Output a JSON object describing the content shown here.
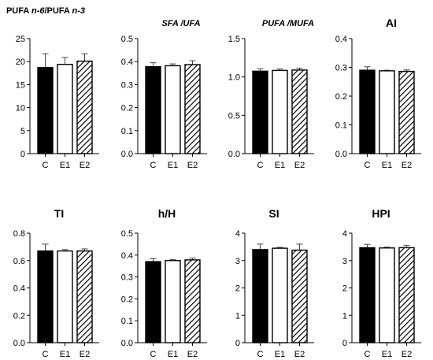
{
  "figure": {
    "categories": [
      "C",
      "E1",
      "E2"
    ],
    "colors": {
      "C": "#000000",
      "E1": "#ffffff",
      "E2": "hatch"
    }
  },
  "chart_data": [
    {
      "type": "bar",
      "title_parts": [
        {
          "text": "PUFA ",
          "italic": false
        },
        {
          "text": "n-6",
          "italic": true
        },
        {
          "text": "/PUFA ",
          "italic": false
        },
        {
          "text": "n-3",
          "italic": true
        }
      ],
      "title": "PUFA n-6/PUFA n-3",
      "categories": [
        "C",
        "E1",
        "E2"
      ],
      "values": [
        18.7,
        19.4,
        20.1
      ],
      "errors": [
        3.0,
        1.5,
        1.6
      ],
      "ylim": [
        0,
        25
      ],
      "ticks": [
        0,
        5,
        10,
        15,
        20,
        25
      ],
      "tick_labels": [
        "0",
        "5",
        "10",
        "15",
        "20",
        "25"
      ]
    },
    {
      "type": "bar",
      "title": "SFA /UFA",
      "title_style": "italic",
      "categories": [
        "C",
        "E1",
        "E2"
      ],
      "values": [
        0.378,
        0.382,
        0.387
      ],
      "errors": [
        0.017,
        0.008,
        0.017
      ],
      "ylim": [
        0,
        0.5
      ],
      "ticks": [
        0,
        0.1,
        0.2,
        0.3,
        0.4,
        0.5
      ],
      "tick_labels": [
        "0.0",
        "0.1",
        "0.2",
        "0.3",
        "0.4",
        "0.5"
      ]
    },
    {
      "type": "bar",
      "title": "PUFA /MUFA",
      "title_style": "italic",
      "categories": [
        "C",
        "E1",
        "E2"
      ],
      "values": [
        1.075,
        1.085,
        1.09
      ],
      "errors": [
        0.03,
        0.02,
        0.025
      ],
      "ylim": [
        0,
        1.5
      ],
      "ticks": [
        0,
        0.5,
        1.0,
        1.5
      ],
      "tick_labels": [
        "0.0",
        "0.5",
        "1.0",
        "1.5"
      ]
    },
    {
      "type": "bar",
      "title": "AI",
      "title_style": "bold",
      "categories": [
        "C",
        "E1",
        "E2"
      ],
      "values": [
        0.29,
        0.288,
        0.286
      ],
      "errors": [
        0.012,
        0.002,
        0.005
      ],
      "ylim": [
        0,
        0.4
      ],
      "ticks": [
        0,
        0.1,
        0.2,
        0.3,
        0.4
      ],
      "tick_labels": [
        "0.0",
        "0.1",
        "0.2",
        "0.3",
        "0.4"
      ]
    },
    {
      "type": "bar",
      "title": "TI",
      "title_style": "bold",
      "categories": [
        "C",
        "E1",
        "E2"
      ],
      "values": [
        0.67,
        0.67,
        0.67
      ],
      "errors": [
        0.05,
        0.01,
        0.015
      ],
      "ylim": [
        0,
        0.8
      ],
      "ticks": [
        0,
        0.2,
        0.4,
        0.6,
        0.8
      ],
      "tick_labels": [
        "0.0",
        "0.2",
        "0.4",
        "0.6",
        "0.8"
      ]
    },
    {
      "type": "bar",
      "title": "h/H",
      "title_style": "bold",
      "categories": [
        "C",
        "E1",
        "E2"
      ],
      "values": [
        0.37,
        0.375,
        0.378
      ],
      "errors": [
        0.013,
        0.005,
        0.008
      ],
      "ylim": [
        0,
        0.5
      ],
      "ticks": [
        0,
        0.1,
        0.2,
        0.3,
        0.4,
        0.5
      ],
      "tick_labels": [
        "0.0",
        "0.1",
        "0.2",
        "0.3",
        "0.4",
        "0.5"
      ]
    },
    {
      "type": "bar",
      "title": "SI",
      "title_style": "bold",
      "categories": [
        "C",
        "E1",
        "E2"
      ],
      "values": [
        3.4,
        3.45,
        3.38
      ],
      "errors": [
        0.2,
        0.03,
        0.22
      ],
      "ylim": [
        0,
        4
      ],
      "ticks": [
        0,
        1,
        2,
        3,
        4
      ],
      "tick_labels": [
        "0",
        "1",
        "2",
        "3",
        "4"
      ]
    },
    {
      "type": "bar",
      "title": "HPI",
      "title_style": "bold",
      "categories": [
        "C",
        "E1",
        "E2"
      ],
      "values": [
        3.47,
        3.46,
        3.47
      ],
      "errors": [
        0.12,
        0.03,
        0.08
      ],
      "ylim": [
        0,
        4
      ],
      "ticks": [
        0,
        1,
        2,
        3,
        4
      ],
      "tick_labels": [
        "0",
        "1",
        "2",
        "3",
        "4"
      ]
    }
  ]
}
